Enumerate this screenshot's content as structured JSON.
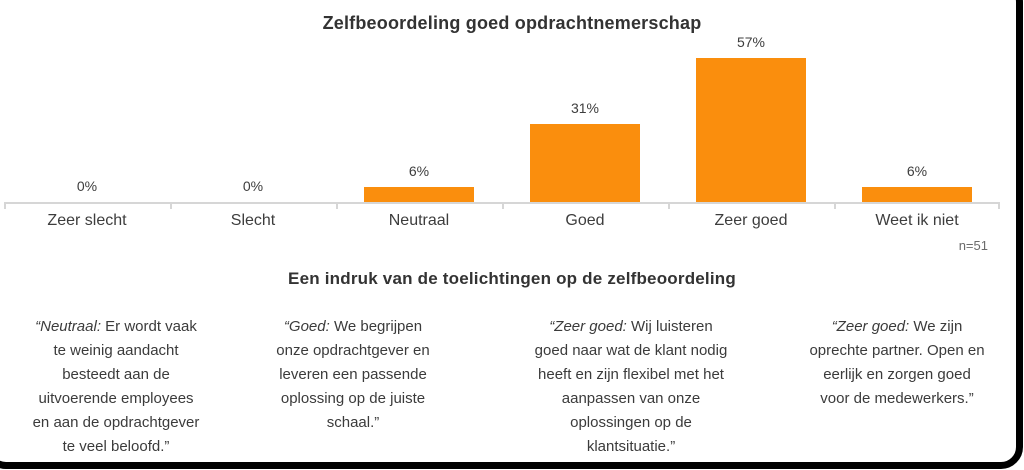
{
  "chart_data": {
    "type": "bar",
    "title": "Zelfbeoordeling goed opdrachtnemerschap",
    "categories": [
      "Zeer slecht",
      "Slecht",
      "Neutraal",
      "Goed",
      "Zeer goed",
      "Weet ik niet"
    ],
    "values": [
      0,
      0,
      6,
      31,
      57,
      6
    ],
    "value_labels": [
      "0%",
      "0%",
      "6%",
      "31%",
      "57%",
      "6%"
    ],
    "unit": "percent",
    "ylim": [
      0,
      60
    ],
    "grid": false,
    "legend": "none",
    "bar_color": "#FA8E0D",
    "axis_color": "#D6D6D6",
    "sample_size_label": "n=51"
  },
  "quotes_section": {
    "title": "Een indruk van de toelichtingen op de zelfbeoordeling",
    "quotes": [
      {
        "lead": "“Neutraal:",
        "body": " Er wordt vaak\nte weinig aandacht\nbesteedt aan de\nuitvoerende employees\nen aan de opdrachtgever\nte veel beloofd.”"
      },
      {
        "lead": "“Goed:",
        "body": " We begrijpen\nonze opdrachtgever en\nleveren een passende\noplossing op de juiste\nschaal.”"
      },
      {
        "lead": "“Zeer goed:",
        "body": " Wij luisteren\ngoed naar wat de klant nodig\nheeft en zijn flexibel met het\naanpassen van onze\noplossingen op de\nklantsituatie.”"
      },
      {
        "lead": "“Zeer goed:",
        "body": " We zijn\noprechte partner. Open en\neerlijk en zorgen goed\nvoor de medewerkers.”"
      }
    ]
  }
}
